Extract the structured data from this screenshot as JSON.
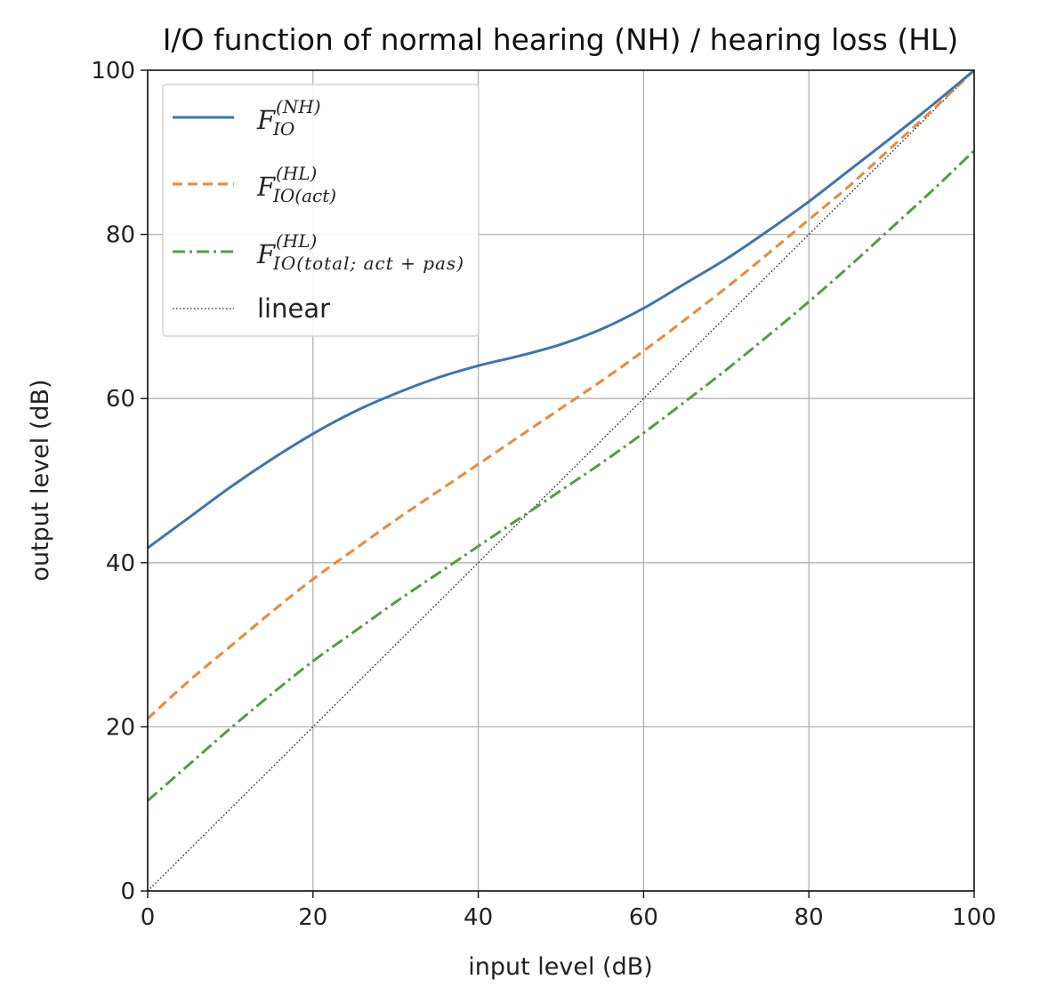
{
  "chart_data": {
    "type": "line",
    "title": "I/O function of normal hearing (NH) / hearing loss (HL)",
    "xlabel": "input level (dB)",
    "ylabel": "output level (dB)",
    "xlim": [
      0,
      100
    ],
    "ylim": [
      0,
      100
    ],
    "x_ticks": [
      "0",
      "20",
      "40",
      "60",
      "80",
      "100"
    ],
    "y_ticks": [
      "0",
      "20",
      "40",
      "60",
      "80",
      "100"
    ],
    "grid": true,
    "legend_position": "top-left",
    "x": [
      0,
      5,
      10,
      15,
      20,
      25,
      30,
      35,
      40,
      45,
      50,
      55,
      60,
      65,
      70,
      75,
      80,
      85,
      90,
      95,
      100
    ],
    "series": [
      {
        "name": "F_IO^(NH)",
        "legend_main": "F",
        "legend_sup": "(NH)",
        "legend_sub": "IO",
        "color": "#3b75af",
        "style": "solid",
        "values": [
          41.8,
          45.5,
          49.2,
          52.6,
          55.7,
          58.4,
          60.6,
          62.5,
          64.0,
          65.2,
          66.6,
          68.5,
          71.0,
          74.0,
          77.0,
          80.4,
          84.0,
          87.9,
          91.8,
          95.8,
          100.0
        ]
      },
      {
        "name": "F_IO(act)^(HL)",
        "legend_main": "F",
        "legend_sup": "(HL)",
        "legend_sub": "IO(act)",
        "color": "#ef8636",
        "style": "dashed",
        "values": [
          21.0,
          25.6,
          29.8,
          34.0,
          38.0,
          41.6,
          45.2,
          48.6,
          52.0,
          55.4,
          58.8,
          62.2,
          65.8,
          69.6,
          73.5,
          77.6,
          81.8,
          86.0,
          90.6,
          95.2,
          100.0
        ]
      },
      {
        "name": "F_IO(total; act+pas)^(HL)",
        "legend_main": "F",
        "legend_sup": "(HL)",
        "legend_sub": "IO(total; act + pas)",
        "color": "#519e3e",
        "style": "dashdot",
        "values": [
          11.0,
          15.4,
          19.8,
          24.0,
          28.0,
          31.6,
          35.2,
          38.6,
          42.0,
          45.4,
          48.8,
          52.2,
          55.8,
          59.6,
          63.5,
          67.6,
          71.8,
          76.2,
          80.8,
          85.4,
          90.2
        ]
      },
      {
        "name": "linear",
        "legend_main": "linear",
        "legend_sup": "",
        "legend_sub": "",
        "color": "#222222",
        "style": "dotted",
        "values": [
          0,
          5,
          10,
          15,
          20,
          25,
          30,
          35,
          40,
          45,
          50,
          55,
          60,
          65,
          70,
          75,
          80,
          85,
          90,
          95,
          100
        ]
      }
    ]
  }
}
